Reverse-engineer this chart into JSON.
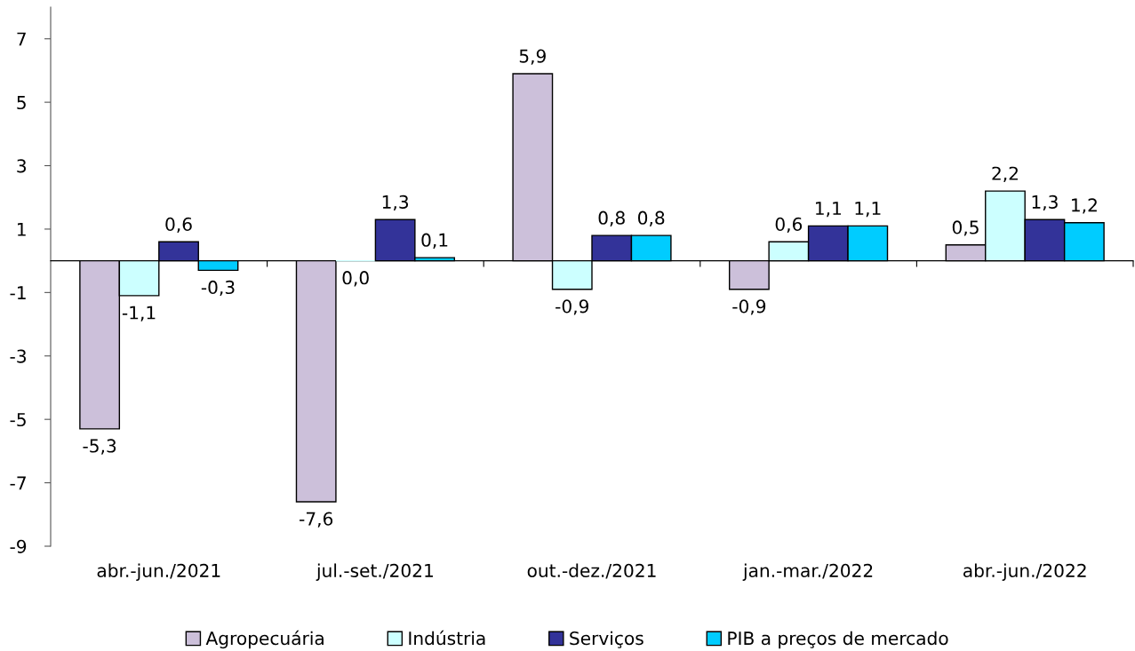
{
  "chart_data": {
    "type": "bar",
    "categories": [
      "abr.-jun./2021",
      "jul.-set./2021",
      "out.-dez./2021",
      "jan.-mar./2022",
      "abr.-jun./2022"
    ],
    "series": [
      {
        "name": "Agropecuária",
        "color": "#ccc0da",
        "values": [
          -5.3,
          -7.6,
          5.9,
          -0.9,
          0.5
        ],
        "value_labels": [
          "-5,3",
          "-7,6",
          "5,9",
          "-0,9",
          "0,5"
        ]
      },
      {
        "name": "Indústria",
        "color": "#ccffff",
        "values": [
          -1.1,
          0.0,
          -0.9,
          0.6,
          2.2
        ],
        "value_labels": [
          "-1,1",
          "0,0",
          "-0,9",
          "0,6",
          "2,2"
        ]
      },
      {
        "name": "Serviços",
        "color": "#333399",
        "values": [
          0.6,
          1.3,
          0.8,
          1.1,
          1.3
        ],
        "value_labels": [
          "0,6",
          "1,3",
          "0,8",
          "1,1",
          "1,3"
        ]
      },
      {
        "name": "PIB a preços de mercado",
        "color": "#00ccff",
        "values": [
          -0.3,
          0.1,
          0.8,
          1.1,
          1.2
        ],
        "value_labels": [
          "-0,3",
          "0,1",
          "0,8",
          "1,1",
          "1,2"
        ]
      }
    ],
    "ylim": [
      -9,
      8
    ],
    "yticks": [
      -9,
      -7,
      -5,
      -3,
      -1,
      1,
      3,
      5,
      7
    ],
    "legend": "bottom"
  }
}
